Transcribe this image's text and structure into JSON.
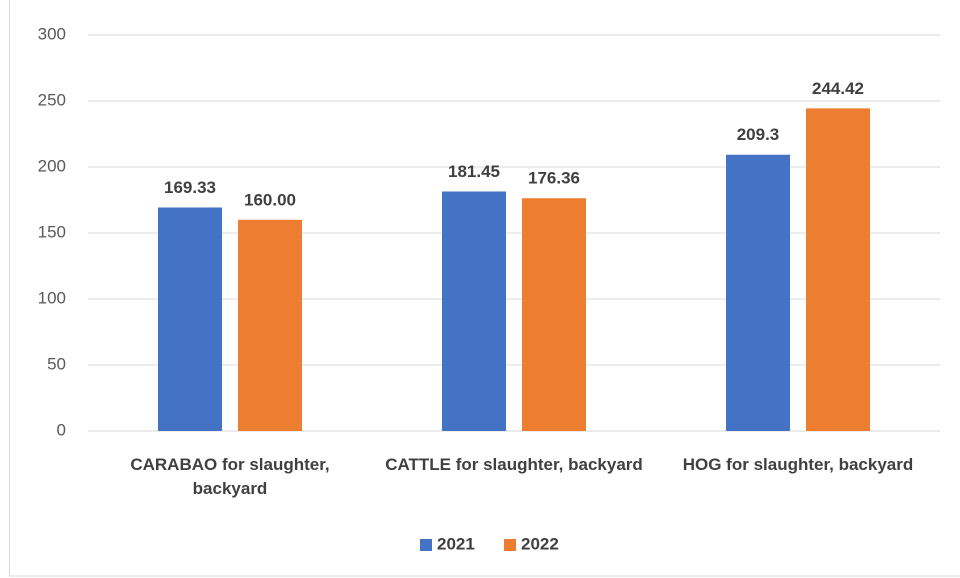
{
  "chart_data": {
    "type": "bar",
    "categories": [
      "CARABAO for slaughter, backyard",
      "CATTLE for slaughter, backyard",
      "HOG for slaughter, backyard"
    ],
    "series": [
      {
        "name": "2021",
        "color": "#4472c4",
        "values": [
          169.33,
          181.45,
          209.3
        ],
        "value_labels": [
          "169.33",
          "181.45",
          "209.3"
        ]
      },
      {
        "name": "2022",
        "color": "#ed7d31",
        "values": [
          160,
          176.36,
          244.42
        ],
        "value_labels": [
          "160.00",
          "176.36",
          "244.42"
        ]
      }
    ],
    "ylim": [
      0,
      300
    ],
    "yticks": [
      0,
      50,
      100,
      150,
      200,
      250,
      300
    ],
    "grid": true,
    "legend": "bottom"
  }
}
